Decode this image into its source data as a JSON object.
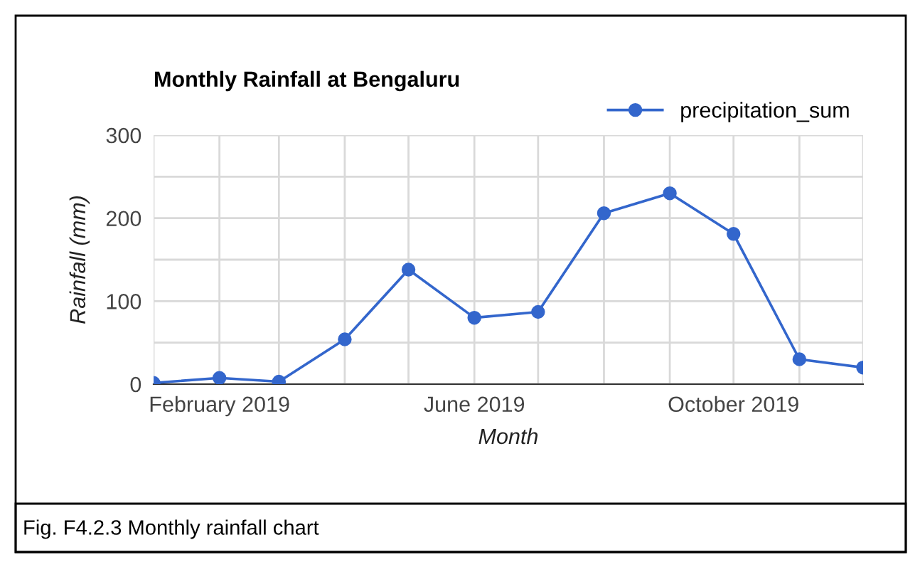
{
  "chart_data": {
    "type": "line",
    "title": "Monthly Rainfall at Bengaluru",
    "xlabel": "Month",
    "ylabel": "Rainfall (mm)",
    "x": [
      "2019-01-01",
      "2019-02-01",
      "2019-03-01",
      "2019-04-01",
      "2019-05-01",
      "2019-06-01",
      "2019-07-01",
      "2019-08-01",
      "2019-09-01",
      "2019-10-01",
      "2019-11-01",
      "2019-12-01"
    ],
    "series": [
      {
        "name": "precipitation_sum",
        "color": "#3366cc",
        "values": [
          1.5,
          7.5,
          3,
          54,
          138,
          80,
          87,
          206,
          230,
          181,
          30,
          20
        ]
      }
    ],
    "xlim": [
      "2019-01-01",
      "2019-12-01"
    ],
    "xticks": [
      {
        "value": "2019-01-01",
        "label": null
      },
      {
        "value": "2019-02-01",
        "label": "February 2019"
      },
      {
        "value": "2019-03-01",
        "label": null
      },
      {
        "value": "2019-04-01",
        "label": null
      },
      {
        "value": "2019-05-01",
        "label": null
      },
      {
        "value": "2019-06-01",
        "label": "June 2019"
      },
      {
        "value": "2019-07-01",
        "label": null
      },
      {
        "value": "2019-08-01",
        "label": null
      },
      {
        "value": "2019-09-01",
        "label": null
      },
      {
        "value": "2019-10-01",
        "label": "October 2019"
      },
      {
        "value": "2019-11-01",
        "label": null
      },
      {
        "value": "2019-12-01",
        "label": null
      }
    ],
    "ylim": [
      0,
      300
    ],
    "yticks": [
      0,
      {
        "value": 50,
        "label": null
      },
      100,
      {
        "value": 150,
        "label": null
      },
      200,
      {
        "value": 250,
        "label": null
      },
      300
    ],
    "grid": true,
    "legend": "top right",
    "marker": "circle",
    "line_style": "solid",
    "annotations": [
      "Fig. F4.2.3 Monthly rainfall chart"
    ]
  }
}
